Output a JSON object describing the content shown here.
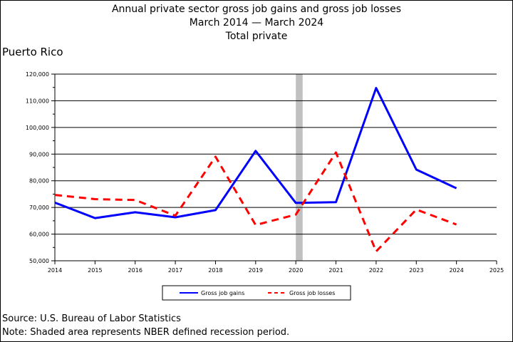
{
  "title_lines": [
    "Annual private sector gross job gains and gross job losses",
    "March 2014 — March 2024",
    "Total private"
  ],
  "region": "Puerto Rico",
  "footer": {
    "source": "Source: U.S. Bureau of Labor Statistics",
    "note": "Note: Shaded area represents NBER defined recession period."
  },
  "chart_data": {
    "type": "line",
    "title": "Annual private sector gross job gains and gross job losses",
    "subtitle": "March 2014 — March 2024",
    "x_ticks": [
      2014,
      2015,
      2016,
      2017,
      2018,
      2019,
      2020,
      2021,
      2022,
      2023,
      2024,
      2025
    ],
    "y_ticks": [
      50000,
      60000,
      70000,
      80000,
      90000,
      100000,
      110000,
      120000
    ],
    "y_tick_labels": [
      "50,000",
      "60,000",
      "70,000",
      "80,000",
      "90,000",
      "100,000",
      "110,000",
      "120,000"
    ],
    "xlim": [
      2014,
      2025
    ],
    "ylim": [
      50000,
      120000
    ],
    "grid": "horizontal",
    "recession": {
      "from": 2020.0,
      "to": 2020.17,
      "color": "#c0c0c0"
    },
    "x": [
      2014,
      2015,
      2016,
      2017,
      2018,
      2019,
      2020,
      2021,
      2022,
      2023,
      2024
    ],
    "series": [
      {
        "name": "Gross job gains",
        "color": "#0000ff",
        "style": "solid",
        "values": [
          71800,
          66000,
          68200,
          66300,
          69000,
          91200,
          71700,
          72000,
          114800,
          84200,
          77200
        ]
      },
      {
        "name": "Gross job losses",
        "color": "#ff0000",
        "style": "dashed",
        "values": [
          74700,
          73100,
          72800,
          66900,
          89000,
          63400,
          67300,
          90600,
          53500,
          69200,
          63600
        ]
      }
    ],
    "legend": "bottom"
  }
}
